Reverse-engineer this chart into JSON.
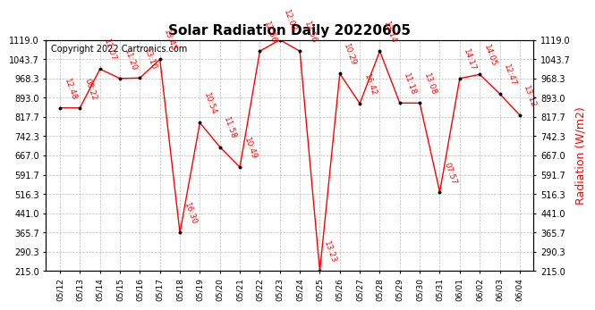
{
  "title": "Solar Radiation Daily 20220605",
  "copyright_text": "Copyright 2022 Cartronics.com",
  "ylabel": "Radiation (W/m2)",
  "dates": [
    "05/12",
    "05/13",
    "05/14",
    "05/15",
    "05/16",
    "05/17",
    "05/18",
    "05/19",
    "05/20",
    "05/21",
    "05/22",
    "05/23",
    "05/24",
    "05/25",
    "05/26",
    "05/27",
    "05/28",
    "05/29",
    "05/30",
    "05/31",
    "06/01",
    "06/02",
    "06/03",
    "06/04"
  ],
  "values": [
    853,
    853,
    1005,
    968,
    970,
    1043,
    365,
    795,
    700,
    621,
    1075,
    1119,
    1075,
    215,
    987,
    870,
    1075,
    872,
    872,
    524,
    968,
    984,
    908,
    825
  ],
  "labels": [
    "12:48",
    "08:22",
    "11:07",
    "11:20",
    "13:10",
    "13:45",
    "16:30",
    "10:54",
    "11:58",
    "10:49",
    "12:56",
    "12:03",
    "12:56",
    "13:23",
    "10:29",
    "16:42",
    "13:14",
    "11:18",
    "13:08",
    "07:57",
    "14:17",
    "14:05",
    "12:47",
    "13:12"
  ],
  "ylim_min": 215.0,
  "ylim_max": 1119.0,
  "yticks": [
    215.0,
    290.3,
    365.7,
    441.0,
    516.3,
    591.7,
    667.0,
    742.3,
    817.7,
    893.0,
    968.3,
    1043.7,
    1119.0
  ],
  "line_color": "red",
  "marker_color": "black",
  "grid_color": "#bbbbbb",
  "bg_color": "white",
  "title_fontsize": 11,
  "label_fontsize": 6.5,
  "ylabel_fontsize": 9,
  "copyright_fontsize": 7,
  "tick_fontsize": 7,
  "xtick_fontsize": 6.5
}
